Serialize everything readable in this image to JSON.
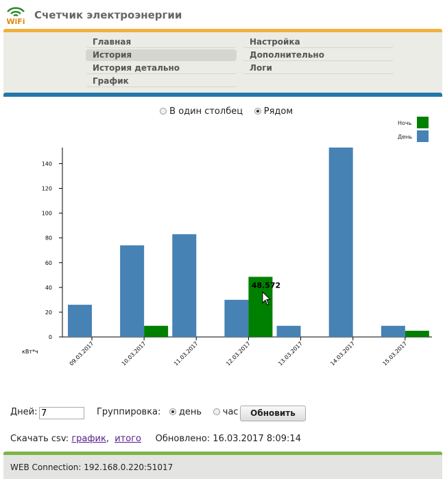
{
  "header": {
    "title": "Счетчик электроэнергии",
    "logo_text": "WiFi"
  },
  "menu": {
    "items": [
      {
        "label": "Главная",
        "active": false
      },
      {
        "label": "История",
        "active": true
      },
      {
        "label": "История детально",
        "active": false
      },
      {
        "label": "График",
        "active": false
      },
      {
        "label": "Настройка",
        "active": false
      },
      {
        "label": "Дополнительно",
        "active": false
      },
      {
        "label": "Логи",
        "active": false
      }
    ]
  },
  "mode": {
    "option_single": "В один столбец",
    "option_side": "Рядом",
    "selected": "side"
  },
  "chart_data": {
    "type": "bar",
    "categories": [
      "09.03.2017",
      "10.03.2017",
      "11.03.2017",
      "12.03.2017",
      "13.03.2017",
      "14.03.2017",
      "15.03.2017"
    ],
    "series": [
      {
        "name": "День",
        "color": "#4682b4",
        "values": [
          26,
          74,
          83,
          30,
          9,
          153,
          9
        ]
      },
      {
        "name": "Ночь",
        "color": "#008000",
        "values": [
          0,
          9,
          0,
          48.572,
          0,
          0,
          5
        ]
      }
    ],
    "ylabel": "кВт*ч",
    "yticks": [
      0,
      20,
      40,
      60,
      80,
      100,
      120,
      140
    ],
    "ylim": [
      0,
      153
    ],
    "tooltip": "48.572",
    "legend_position": "top-right"
  },
  "controls": {
    "days_label": "Дней:",
    "days_value": "7",
    "grouping_label": "Группировка:",
    "group_day": "день",
    "group_hour": "час",
    "refresh_label": "Обновить",
    "download_label": "Скачать csv:",
    "download_chart": "график",
    "download_total": "итого",
    "updated": "Обновлено: 16.03.2017 8:09:14"
  },
  "footer": {
    "connection": "WEB Connection: 192.168.0.220:51017"
  }
}
